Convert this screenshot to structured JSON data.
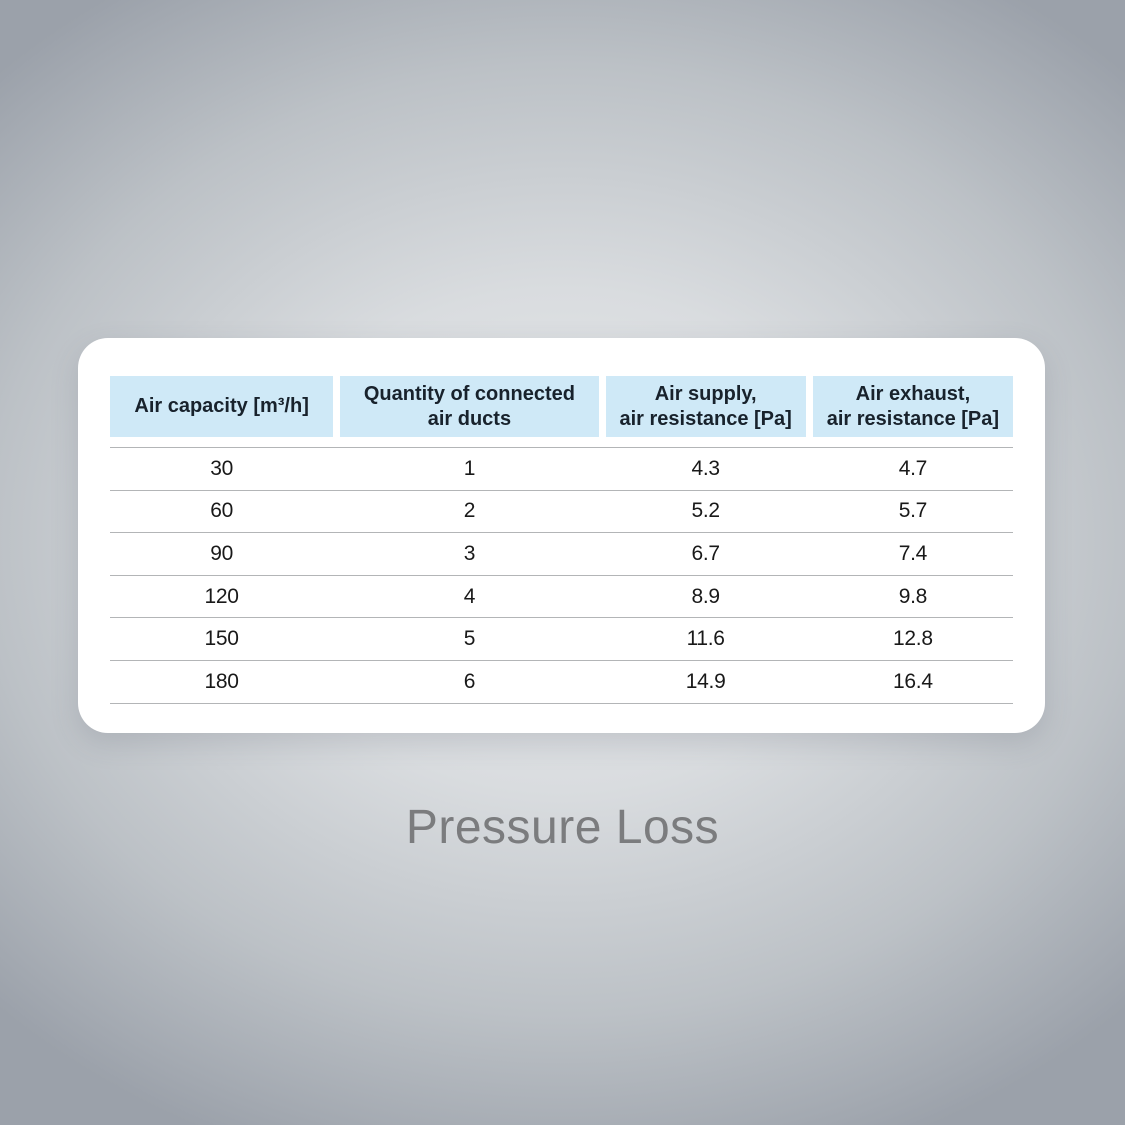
{
  "colors": {
    "bg_center": "#e9ebed",
    "bg_edge": "#9ba1aa",
    "card_bg": "#ffffff",
    "header_bg": "#cfe9f7",
    "header_text": "#18222c",
    "cell_text": "#191919",
    "row_line": "#b3b5b7",
    "caption_text": "#7b7c7e"
  },
  "caption": "Pressure Loss",
  "table": {
    "header_display": [
      "Air capacity [m³/h]",
      "Quantity of connected\nair ducts",
      "Air supply,\nair resistance [Pa]",
      "Air exhaust,\nair resistance [Pa]"
    ]
  },
  "chart_data": {
    "type": "table",
    "title": "Pressure Loss",
    "columns": [
      "Air capacity [m³/h]",
      "Quantity of connected air ducts",
      "Air supply, air resistance [Pa]",
      "Air exhaust, air resistance [Pa]"
    ],
    "rows": [
      [
        30,
        1,
        4.3,
        4.7
      ],
      [
        60,
        2,
        5.2,
        5.7
      ],
      [
        90,
        3,
        6.7,
        7.4
      ],
      [
        120,
        4,
        8.9,
        9.8
      ],
      [
        150,
        5,
        11.6,
        12.8
      ],
      [
        180,
        6,
        14.9,
        16.4
      ]
    ]
  }
}
